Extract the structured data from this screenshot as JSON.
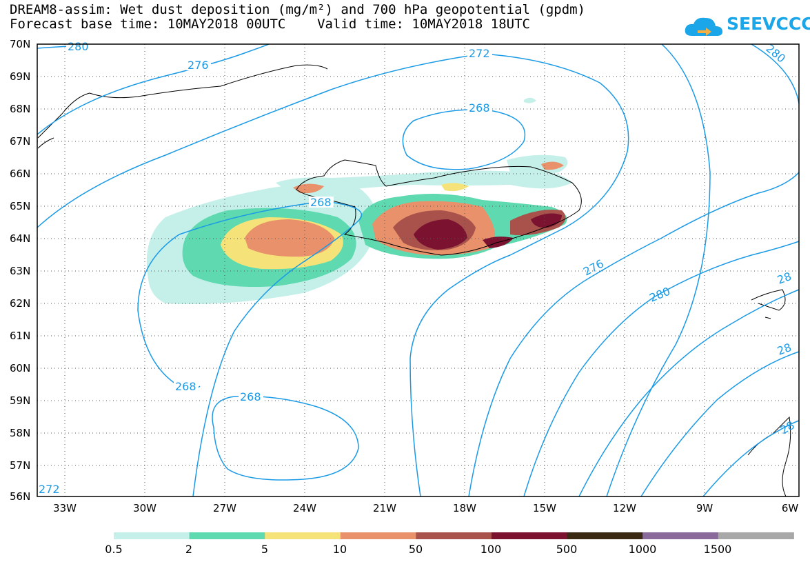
{
  "title": {
    "line1": "DREAM8-assim: Wet dust deposition (mg/m²) and 700 hPa geopotential (gpdm)",
    "line2": "Forecast base time: 10MAY2018 00UTC    Valid time: 10MAY2018 18UTC"
  },
  "logo": {
    "text": "SEEVCCC",
    "icon": "cloud-logo-icon",
    "color": "#1aa6e8"
  },
  "axes": {
    "lat_labels": [
      "70N",
      "69N",
      "68N",
      "67N",
      "66N",
      "65N",
      "64N",
      "63N",
      "62N",
      "61N",
      "60N",
      "59N",
      "58N",
      "57N",
      "56N"
    ],
    "lon_labels": [
      "33W",
      "30W",
      "27W",
      "24W",
      "21W",
      "18W",
      "15W",
      "12W",
      "9W",
      "6W"
    ]
  },
  "contours": {
    "color": "#1a9ae6",
    "labels": [
      "280",
      "276",
      "272",
      "268",
      "268",
      "268",
      "268",
      "276",
      "280",
      "272",
      "280",
      "28",
      "28",
      "28"
    ]
  },
  "legend": {
    "colors": [
      "#c5f0ea",
      "#5ed9b0",
      "#f5e37a",
      "#e9916a",
      "#a8524b",
      "#7a1230",
      "#3a2a14",
      "#8a6a9a",
      "#a8a8a8"
    ],
    "labels": [
      "0.5",
      "2",
      "5",
      "10",
      "50",
      "100",
      "500",
      "1000",
      "1500"
    ]
  },
  "colors": {
    "coastline": "#000000",
    "gridline": "#555555"
  }
}
